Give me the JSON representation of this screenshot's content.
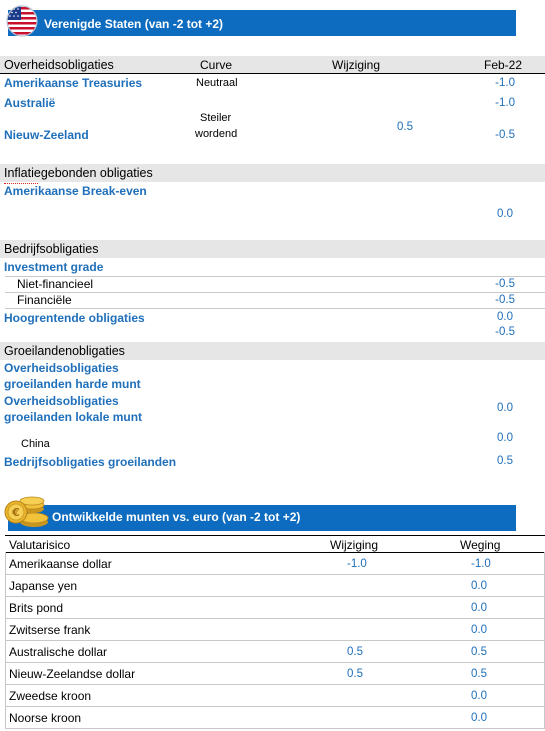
{
  "us_section": {
    "flag_icon": "us-flag-icon",
    "title": "Verenigde Staten (van -2 tot +2)",
    "headers": {
      "category": "Overheidsobligaties",
      "curve": "Curve",
      "change": "Wijziging",
      "date": "Feb-22"
    },
    "government": [
      {
        "name": "Amerikaanse Treasuries",
        "curve": "Neutraal",
        "change": "",
        "value": "-1.0"
      },
      {
        "name": "Australië",
        "curve": "",
        "change": "",
        "value": "-1.0"
      },
      {
        "name": "Nieuw-Zeeland",
        "curve_line1": "Steiler",
        "curve_line2": "wordend",
        "change": "0.5",
        "value": "-0.5"
      }
    ],
    "inflation_heading": "Inflatiegebonden obligaties",
    "inflation": [
      {
        "name": "Amerikaanse Break-even",
        "value": "0.0"
      }
    ],
    "corporate_heading": "Bedrijfsobligaties",
    "corporate": {
      "ig_label": "Investment grade",
      "non_financial": {
        "name": "Niet-financieel",
        "value": "-0.5"
      },
      "financial": {
        "name": "Financiële",
        "value": "-0.5"
      },
      "high_yield": {
        "name": "Hoogrentende obligaties",
        "value": "0.0",
        "value2": "-0.5"
      }
    },
    "em_heading": "Groeilandenobligaties",
    "em": {
      "hard_line1": "Overheidsobligaties",
      "hard_line2": "groeilanden harde munt",
      "local_line1": "Overheidsobligaties",
      "local_line2": "groeilanden lokale munt",
      "local_value": "0.0",
      "china_name": "China",
      "china_value": "0.0",
      "corp_name": "Bedrijfsobligaties groeilanden",
      "corp_value": "0.5"
    }
  },
  "fx_section": {
    "coins_icon": "euro-coins-icon",
    "title": "Ontwikkelde munten vs. euro (van -2 tot +2)",
    "headers": {
      "risk": "Valutarisico",
      "change": "Wijziging",
      "weight": "Weging"
    },
    "rows": [
      {
        "name": "Amerikaanse dollar",
        "change": "-1.0",
        "weight": "-1.0"
      },
      {
        "name": "Japanse yen",
        "change": "",
        "weight": "0.0"
      },
      {
        "name": "Brits pond",
        "change": "",
        "weight": "0.0"
      },
      {
        "name": "Zwitserse frank",
        "change": "",
        "weight": "0.0"
      },
      {
        "name": "Australische dollar",
        "change": "0.5",
        "weight": "0.5"
      },
      {
        "name": "Nieuw-Zeelandse dollar",
        "change": "0.5",
        "weight": "0.5"
      },
      {
        "name": "Zweedse kroon",
        "change": "",
        "weight": "0.0"
      },
      {
        "name": "Noorse kroon",
        "change": "",
        "weight": "0.0"
      }
    ]
  },
  "colors": {
    "banner": "#0d6cbf",
    "value_text": "#1f6fba",
    "section_bg": "#e6e6e6"
  }
}
